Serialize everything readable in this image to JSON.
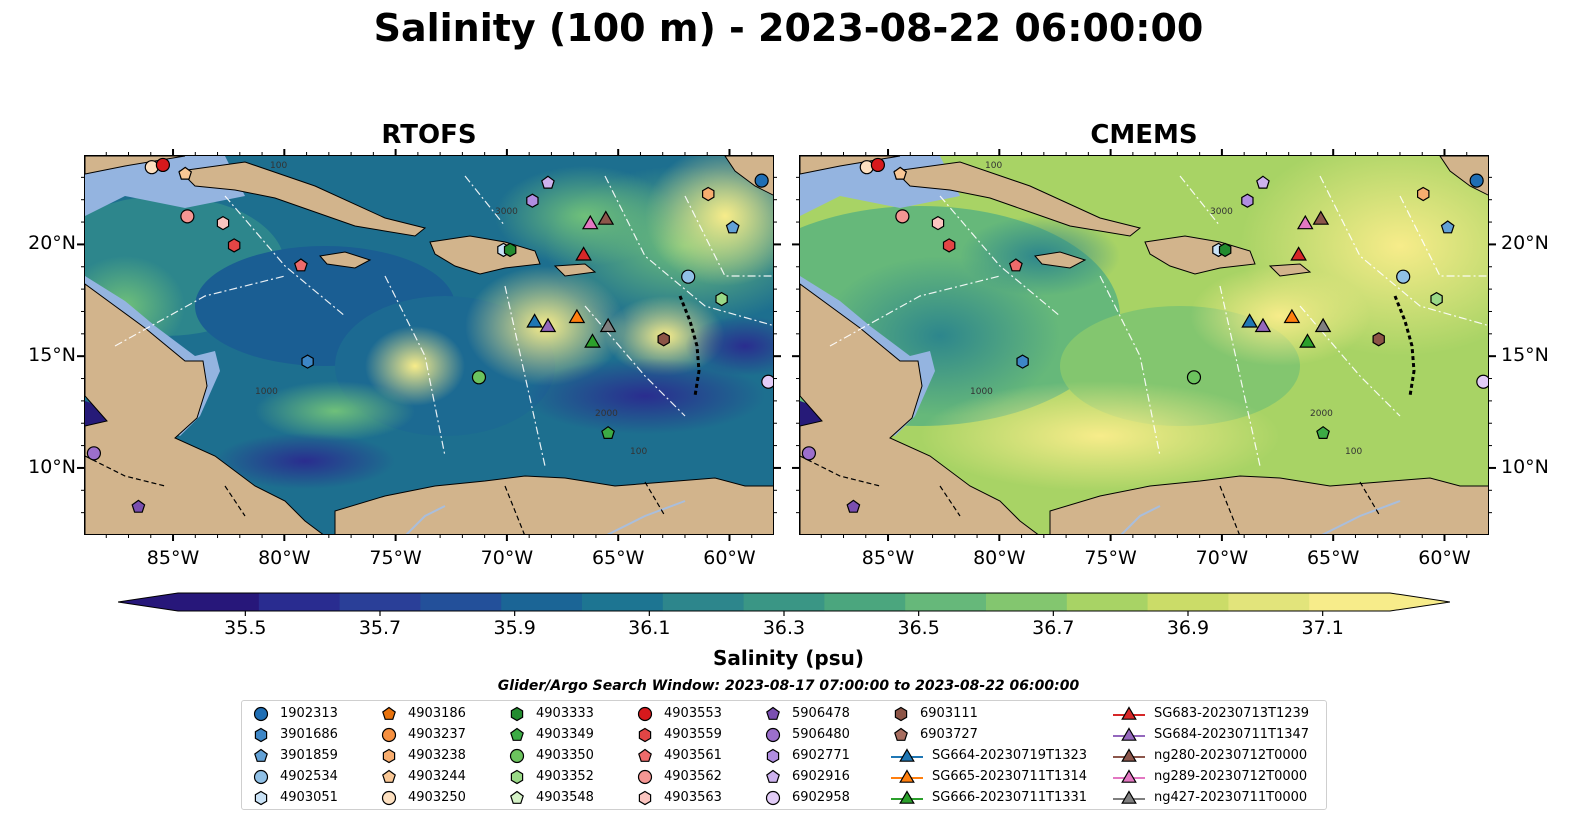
{
  "title": "Salinity (100 m) - 2023-08-22 06:00:00",
  "panels": [
    {
      "title": "RTOFS"
    },
    {
      "title": "CMEMS"
    }
  ],
  "map": {
    "lon_range": [
      -89,
      -58
    ],
    "lat_range": [
      7,
      24
    ],
    "lon_ticks": [
      {
        "value": -85,
        "label": "85°W"
      },
      {
        "value": -80,
        "label": "80°W"
      },
      {
        "value": -75,
        "label": "75°W"
      },
      {
        "value": -70,
        "label": "70°W"
      },
      {
        "value": -65,
        "label": "65°W"
      },
      {
        "value": -60,
        "label": "60°W"
      }
    ],
    "lat_ticks": [
      {
        "value": 10,
        "label": "10°N"
      },
      {
        "value": 15,
        "label": "15°N"
      },
      {
        "value": 20,
        "label": "20°N"
      }
    ],
    "contour_labels": [
      "100",
      "1000",
      "2000",
      "3000"
    ],
    "colors": {
      "land": "#d2b48c",
      "shelf": "#94b4e0",
      "rivers": "#a9bedc"
    }
  },
  "colorbar": {
    "label": "Salinity (psu)",
    "min": 35.4,
    "max": 37.2,
    "ticks": [
      {
        "value": 35.5,
        "label": "35.5"
      },
      {
        "value": 35.7,
        "label": "35.7"
      },
      {
        "value": 35.9,
        "label": "35.9"
      },
      {
        "value": 36.1,
        "label": "36.1"
      },
      {
        "value": 36.3,
        "label": "36.3"
      },
      {
        "value": 36.5,
        "label": "36.5"
      },
      {
        "value": 36.7,
        "label": "36.7"
      },
      {
        "value": 36.9,
        "label": "36.9"
      },
      {
        "value": 37.1,
        "label": "37.1"
      }
    ],
    "colors": [
      "#27177a",
      "#292c90",
      "#2a3f98",
      "#23509a",
      "#1b6596",
      "#1d7592",
      "#2d868c",
      "#3a9685",
      "#4ba67e",
      "#66b87a",
      "#83c66f",
      "#a8d365",
      "#cbdc68",
      "#e2e47b",
      "#f7ec8a"
    ]
  },
  "search_window": "Glider/Argo Search Window: 2023-08-17 07:00:00 to 2023-08-22 06:00:00",
  "legend": [
    {
      "label": "1902313",
      "marker": "circle",
      "color": "#1f6eb4"
    },
    {
      "label": "3901686",
      "marker": "hexagon",
      "color": "#3d86c6"
    },
    {
      "label": "3901859",
      "marker": "pentagon",
      "color": "#62a1d6"
    },
    {
      "label": "4902534",
      "marker": "circle",
      "color": "#90c0e6"
    },
    {
      "label": "4903051",
      "marker": "hexagon",
      "color": "#c9e2f6"
    },
    {
      "label": "4903186",
      "marker": "pentagon",
      "color": "#e8720c"
    },
    {
      "label": "4903237",
      "marker": "circle",
      "color": "#f69040"
    },
    {
      "label": "4903238",
      "marker": "hexagon",
      "color": "#f7ad6f"
    },
    {
      "label": "4903244",
      "marker": "pentagon",
      "color": "#f9c795"
    },
    {
      "label": "4903250",
      "marker": "circle",
      "color": "#fde0c0"
    },
    {
      "label": "4903333",
      "marker": "hexagon",
      "color": "#238b2f"
    },
    {
      "label": "4903349",
      "marker": "pentagon",
      "color": "#3cab45"
    },
    {
      "label": "4903350",
      "marker": "circle",
      "color": "#6cc35e"
    },
    {
      "label": "4903352",
      "marker": "hexagon",
      "color": "#9ad987"
    },
    {
      "label": "4903548",
      "marker": "pentagon",
      "color": "#d4f1c6"
    },
    {
      "label": "4903553",
      "marker": "circle",
      "color": "#d7191c"
    },
    {
      "label": "4903559",
      "marker": "hexagon",
      "color": "#e34545"
    },
    {
      "label": "4903561",
      "marker": "pentagon",
      "color": "#ee6b6b"
    },
    {
      "label": "4903562",
      "marker": "circle",
      "color": "#f59693"
    },
    {
      "label": "4903563",
      "marker": "hexagon",
      "color": "#fbc5c0"
    },
    {
      "label": "5906478",
      "marker": "pentagon",
      "color": "#7a4fb0"
    },
    {
      "label": "5906480",
      "marker": "circle",
      "color": "#9c6fcc"
    },
    {
      "label": "6902771",
      "marker": "hexagon",
      "color": "#b08de0"
    },
    {
      "label": "6902916",
      "marker": "pentagon",
      "color": "#cdb2ee"
    },
    {
      "label": "6902958",
      "marker": "circle",
      "color": "#e2ccf7"
    },
    {
      "label": "6903111",
      "marker": "hexagon",
      "color": "#8c5446"
    },
    {
      "label": "6903727",
      "marker": "pentagon",
      "color": "#a86e60"
    },
    {
      "label": "SG664-20230719T1323",
      "marker": "triangle-line",
      "color": "#1f77b4"
    },
    {
      "label": "SG665-20230711T1314",
      "marker": "triangle-line",
      "color": "#ff7f0e"
    },
    {
      "label": "SG666-20230711T1331",
      "marker": "triangle-line",
      "color": "#2ca02c"
    },
    {
      "label": "SG683-20230713T1239",
      "marker": "triangle-line",
      "color": "#d62728"
    },
    {
      "label": "SG684-20230711T1347",
      "marker": "triangle-line",
      "color": "#9467bd"
    },
    {
      "label": "ng280-20230712T0000",
      "marker": "triangle-line",
      "color": "#8c564b"
    },
    {
      "label": "ng289-20230712T0000",
      "marker": "triangle-line",
      "color": "#e377c2"
    },
    {
      "label": "ng427-20230711T0000",
      "marker": "triangle-line",
      "color": "#7f7f7f"
    }
  ],
  "positions": [
    {
      "id": "4903250",
      "lon": -86.0,
      "lat": 23.5
    },
    {
      "id": "4903553",
      "lon": -85.5,
      "lat": 23.6
    },
    {
      "id": "4903244",
      "lon": -84.5,
      "lat": 23.2
    },
    {
      "id": "4903562",
      "lon": -84.4,
      "lat": 21.3
    },
    {
      "id": "4903563",
      "lon": -82.8,
      "lat": 21.0
    },
    {
      "id": "4903559",
      "lon": -82.3,
      "lat": 20.0
    },
    {
      "id": "4903561",
      "lon": -79.3,
      "lat": 19.1
    },
    {
      "id": "6902771",
      "lon": -68.9,
      "lat": 22.0
    },
    {
      "id": "6902916",
      "lon": -68.2,
      "lat": 22.8
    },
    {
      "id": "4903238",
      "lon": -61.0,
      "lat": 22.3
    },
    {
      "id": "1902313",
      "lon": -58.6,
      "lat": 22.9
    },
    {
      "id": "3901859",
      "lon": -59.9,
      "lat": 20.8
    },
    {
      "id": "4903051",
      "lon": -70.2,
      "lat": 19.8
    },
    {
      "id": "4903333",
      "lon": -69.9,
      "lat": 19.8
    },
    {
      "id": "4902534",
      "lon": -61.9,
      "lat": 18.6
    },
    {
      "id": "4903352",
      "lon": -60.4,
      "lat": 17.6
    },
    {
      "id": "6903111",
      "lon": -63.0,
      "lat": 15.8
    },
    {
      "id": "4903350",
      "lon": -71.3,
      "lat": 14.1
    },
    {
      "id": "4903349",
      "lon": -65.5,
      "lat": 11.6
    },
    {
      "id": "6902958",
      "lon": -58.3,
      "lat": 13.9
    },
    {
      "id": "3901686",
      "lon": -79.0,
      "lat": 14.8
    },
    {
      "id": "5906480",
      "lon": -88.6,
      "lat": 10.7
    },
    {
      "id": "5906478",
      "lon": -86.6,
      "lat": 8.3
    },
    {
      "id": "SG683-20230713T1239",
      "lon": -66.6,
      "lat": 19.6
    },
    {
      "id": "ng289-20230712T0000",
      "lon": -66.3,
      "lat": 21.0
    },
    {
      "id": "ng280-20230712T0000",
      "lon": -65.6,
      "lat": 21.2
    },
    {
      "id": "SG664-20230719T1323",
      "lon": -68.8,
      "lat": 16.6
    },
    {
      "id": "SG684-20230711T1347",
      "lon": -68.2,
      "lat": 16.4
    },
    {
      "id": "SG665-20230711T1314",
      "lon": -66.9,
      "lat": 16.8
    },
    {
      "id": "SG666-20230711T1331",
      "lon": -66.2,
      "lat": 15.7
    },
    {
      "id": "ng427-20230711T0000",
      "lon": -65.5,
      "lat": 16.4
    }
  ]
}
